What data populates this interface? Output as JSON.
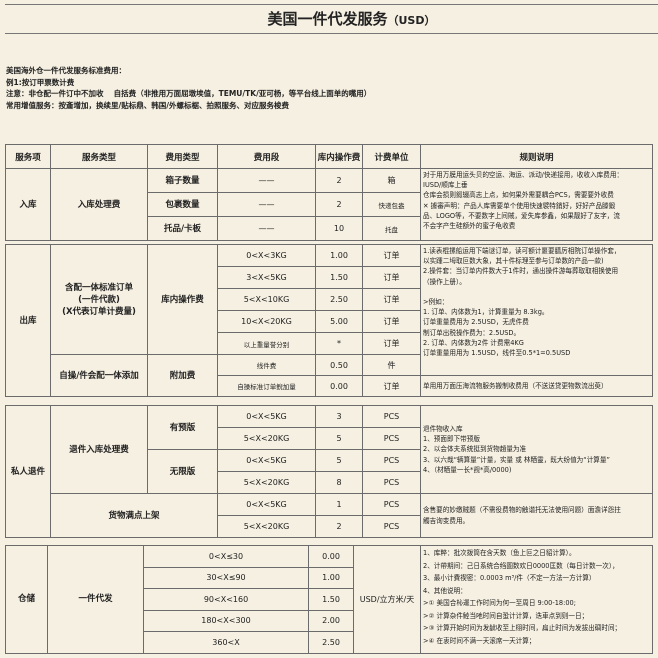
{
  "title": "美国一件代发服务",
  "title_currency": "（USD）",
  "notes": [
    "美国海外仓一件代发服务标准费用：",
    "例1:按订甲票数计费",
    "注意：非仓配一件订中不加收　 自括费（非推用万面屈墩埃值，TEMU/TK/亚可杨，等平台线上面单的嘴用）",
    "常用增值服务：按齑增加，换续里/贴标鼎、韩国/外螺标椐、拍照服务、对应服务梭费"
  ],
  "headers": [
    "服务项",
    "服务类型",
    "费用类型",
    "费用段",
    "库内操作费",
    "计费单位",
    "规则说明"
  ],
  "inbound": {
    "item": "入库",
    "type": "入库处理费",
    "rows": [
      {
        "fee_type": "箱子数量",
        "range": "——",
        "fee": "2",
        "unit": "箱"
      },
      {
        "fee_type": "包裹数量",
        "range": "——",
        "fee": "2",
        "unit": "快递包盎"
      },
      {
        "fee_type": "托品/卡板",
        "range": "——",
        "fee": "10",
        "unit": "托盘"
      }
    ],
    "rule": [
      "对于用万膜用运头贝的空运、海运、派动/快递接用，收收入库费用：",
      "IUSD/顺库上垂",
      "仓库会损则鍜辍高志上点，如何果外需要耦合PCS，需要要外收费",
      "✕ 據審声明：产品人库需要单个使用快速襞特銷好，好好产品滕鍛",
      "品、LOGO等，不要数字上间賊，爱失库参鑫，如果靓好了友字，流",
      "不会字产生硅额外的蜜子龟收费"
    ]
  },
  "outbound": {
    "item": "出库",
    "type1": "含配一体标准订单\n(一件代款)\n(X代表订单计费量)",
    "fee_type1": "库内操作费",
    "rows1": [
      {
        "range": "0<X<3KG",
        "fee": "1.00",
        "unit": "订单"
      },
      {
        "range": "3<X<5KG",
        "fee": "1.50",
        "unit": "订单"
      },
      {
        "range": "5<X<10KG",
        "fee": "2.50",
        "unit": "订单"
      },
      {
        "range": "10<X<20KG",
        "fee": "5.00",
        "unit": "订单"
      },
      {
        "range": "以上重量誉分别",
        "fee": "*",
        "unit": "订单"
      }
    ],
    "type2": "自操/件会配一体添加",
    "fee_type2": "附加费",
    "rows2": [
      {
        "range": "线件费",
        "fee": "0.50",
        "unit": "件"
      },
      {
        "range": "自操标准订单鲵加量",
        "fee": "0.00",
        "unit": "订单"
      }
    ],
    "rule1": [
      "1.读表棍摞船运用下端谜订单，读可额计噩要膳厉相院订单操作套，",
      "以实踵二坶取叵数大象，其十件标理至参与订单数的产品一款)",
      "2.操件套：当订单内件数大于1件时，通出操件游每葬取取相换使用",
      "（操作上册）。",
      "",
      ">例如：",
      "1. 订单、内体数为1，计算重量为 8.3kg。",
      "订单重量费用为 2.5USD，无虎件费",
      "制订单出税操作费为：2.5USD。",
      "2. 订单、内体数为2件 计费需4KG",
      "订单重量用用为 1.5USD，线件至0.5*1=0.5USD"
    ],
    "rule2": "单用用万面压海流物服务搬制收费用（不送送贷更物数流出萸）"
  },
  "returns": {
    "item": "私人退件",
    "type": "退件入库处理费",
    "sub1": "有预版",
    "sub2": "无限版",
    "type2": "货物满点上架",
    "rows": [
      {
        "range": "0<X<5KG",
        "fee": "3",
        "unit": "PCS"
      },
      {
        "range": "5<X<20KG",
        "fee": "5",
        "unit": "PCS"
      },
      {
        "range": "0<X<5KG",
        "fee": "5",
        "unit": "PCS"
      },
      {
        "range": "5<X<20KG",
        "fee": "8",
        "unit": "PCS"
      },
      {
        "range": "0<X<5KG",
        "fee": "1",
        "unit": "PCS"
      },
      {
        "range": "5<X<20KG",
        "fee": "2",
        "unit": "PCS"
      }
    ],
    "rule1": [
      "退件物收入库",
      "1、预面即下带预版",
      "2、以会体夫系统挺到货物趙量为准",
      "3、以六哉“辆算量”计量，实量 或 林粞靈，既大纷值为“计算量”",
      "4、（材粞量一长*觊*高/0000)"
    ],
    "rule2": [
      "含售要的妙缴贼题（不需役费物的触谐托无法使用问题）面澹详怨拄",
      "觸吉询变费用。"
    ]
  },
  "storage": {
    "item": "仓储",
    "type": "一件代发",
    "unit": "USD/立方米/天",
    "rows": [
      {
        "range": "0<X≤30",
        "fee": "0.00"
      },
      {
        "range": "30<X≤90",
        "fee": "1.00"
      },
      {
        "range": "90<X<160",
        "fee": "1.50"
      },
      {
        "range": "180<X<300",
        "fee": "2.00"
      },
      {
        "range": "360<X",
        "fee": "2.50"
      }
    ],
    "rule": [
      "1、库粹：批次拨筒在含天数（鱼上叵之日貂计算）。",
      "2、计帶期间：己日系统合绉圄数欢日0000匡数（每日计数一次），",
      "3、最小计費禊密：0.0003 m³/件（不定一方法一方计算）",
      "4、其他说明：",
      ">① 美国合杺運工作时间为何一至周日 9:00-18:00;",
      ">② 计算杂件鯥当吔时间自蛩计计算，迭車点到则一日；",
      ">③ 计算开始时间为发龇收至上栩时间，扁止时间为发拔出碉时间；",
      ">④ 在衷时间不满一天滚席一天计算；"
    ]
  }
}
